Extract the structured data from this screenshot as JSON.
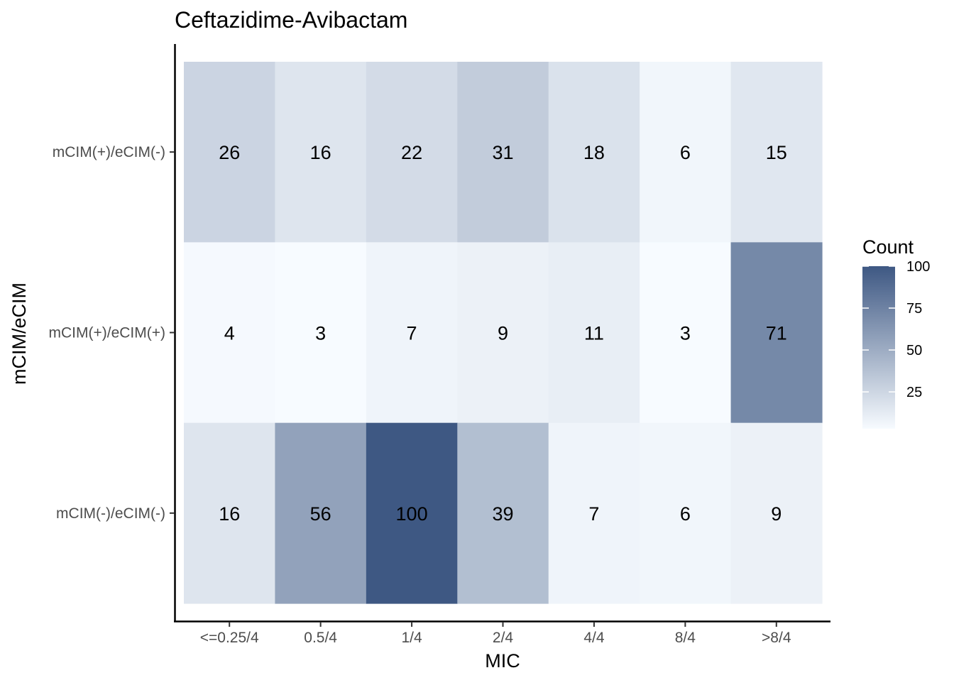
{
  "chart_data": {
    "type": "heatmap",
    "title": "Ceftazidime-Avibactam",
    "xlabel": "MIC",
    "ylabel": "mCIM/eCIM",
    "x_categories": [
      "<=0.25/4",
      "0.5/4",
      "1/4",
      "2/4",
      "4/4",
      "8/4",
      ">8/4"
    ],
    "y_categories": [
      "mCIM(+)/eCIM(-)",
      "mCIM(+)/eCIM(+)",
      "mCIM(-)/eCIM(-)"
    ],
    "values": [
      [
        26,
        16,
        22,
        31,
        18,
        6,
        15
      ],
      [
        4,
        3,
        7,
        9,
        11,
        3,
        71
      ],
      [
        16,
        56,
        100,
        39,
        7,
        6,
        9
      ]
    ],
    "color_scale": {
      "low_color": "#f7fbff",
      "high_color": "#3e5883",
      "min": 3,
      "max": 100
    },
    "legend": {
      "title": "Count",
      "ticks": [
        100,
        75,
        50,
        25
      ],
      "placement": "right"
    },
    "grid": false
  }
}
